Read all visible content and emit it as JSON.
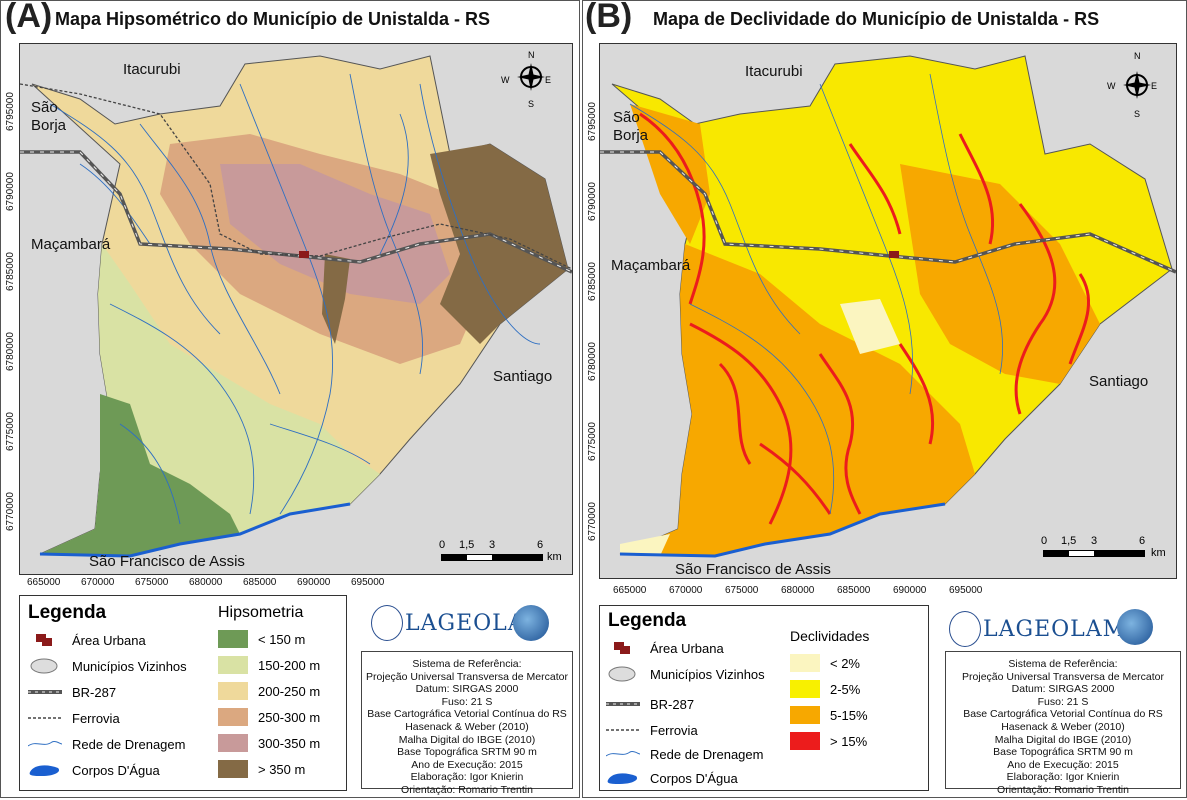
{
  "panel_a": {
    "label": "(A)",
    "title": "Mapa Hipsométrico do Município de Unistalda - RS",
    "places": {
      "itacurubi": "Itacurubi",
      "sao_borja_1": "São",
      "sao_borja_2": "Borja",
      "macambara": "Maçambará",
      "santiago": "Santiago",
      "sao_francisco": "São Francisco de Assis"
    },
    "x_ticks": [
      "665000",
      "670000",
      "675000",
      "680000",
      "685000",
      "690000",
      "695000"
    ],
    "y_ticks": [
      "6795000",
      "6790000",
      "6785000",
      "6780000",
      "6775000",
      "6770000"
    ],
    "scale": {
      "t0": "0",
      "t1": "1,5",
      "t2": "3",
      "t3": "6",
      "unit": "km"
    },
    "compass": {
      "n": "N",
      "s": "S",
      "e": "E",
      "w": "W"
    },
    "legend": {
      "title": "Legenda",
      "items": [
        "Área Urbana",
        "Municípios Vizinhos",
        "BR-287",
        "Ferrovia",
        "Rede de Drenagem",
        "Corpos D'Água"
      ],
      "class_title": "Hipsometria",
      "classes": [
        {
          "label": "<  150 m",
          "color": "#6e9a56"
        },
        {
          "label": "150-200 m",
          "color": "#d9e2a4"
        },
        {
          "label": "200-250 m",
          "color": "#efd99b"
        },
        {
          "label": "250-300 m",
          "color": "#dba880"
        },
        {
          "label": "300-350 m",
          "color": "#c89a9a"
        },
        {
          "label": "> 350 m",
          "color": "#846a45"
        }
      ]
    },
    "logo_text": "LAGEOLAM",
    "info": [
      "Sistema de Referência:",
      "Projeção Universal Transversa de Mercator",
      "Datum: SIRGAS 2000",
      "Fuso: 21 S",
      "Base Cartográfica Vetorial Contínua do RS",
      "Hasenack & Weber (2010)",
      "Malha Digital do IBGE (2010)",
      "Base Topográfica SRTM 90 m",
      "Ano de Execução: 2015",
      "Elaboração: Igor Knierin",
      "Orientação: Romario Trentin"
    ]
  },
  "panel_b": {
    "label": "(B)",
    "title": "Mapa de Declividade do Município de Unistalda - RS",
    "places": {
      "itacurubi": "Itacurubi",
      "sao_borja_1": "São",
      "sao_borja_2": "Borja",
      "macambara": "Maçambará",
      "santiago": "Santiago",
      "sao_francisco": "São Francisco de Assis"
    },
    "x_ticks": [
      "665000",
      "670000",
      "675000",
      "680000",
      "685000",
      "690000",
      "695000"
    ],
    "y_ticks": [
      "6795000",
      "6790000",
      "6785000",
      "6780000",
      "6775000",
      "6770000"
    ],
    "scale": {
      "t0": "0",
      "t1": "1,5",
      "t2": "3",
      "t3": "6",
      "unit": "km"
    },
    "compass": {
      "n": "N",
      "s": "S",
      "e": "E",
      "w": "W"
    },
    "legend": {
      "title": "Legenda",
      "items": [
        "Área Urbana",
        "Municípios Vizinhos",
        "BR-287",
        "Ferrovia",
        "Rede de Drenagem",
        "Corpos D'Água"
      ],
      "class_title": "Declividades",
      "classes": [
        {
          "label": "< 2%",
          "color": "#fbf5c0"
        },
        {
          "label": "2-5%",
          "color": "#f8f000"
        },
        {
          "label": "5-15%",
          "color": "#f7a800"
        },
        {
          "label": "> 15%",
          "color": "#ec1c1c"
        }
      ]
    },
    "logo_text": "LAGEOLAM",
    "info": [
      "Sistema de Referência:",
      "Projeção Universal Transversa de Mercator",
      "Datum: SIRGAS 2000",
      "Fuso: 21 S",
      "Base Cartográfica Vetorial Contínua do RS",
      "Hasenack & Weber (2010)",
      "Malha Digital do IBGE (2010)",
      "Base Topográfica SRTM 90 m",
      "Ano de Execução: 2015",
      "Elaboração: Igor Knierin",
      "Orientação: Romario Trentin"
    ]
  }
}
